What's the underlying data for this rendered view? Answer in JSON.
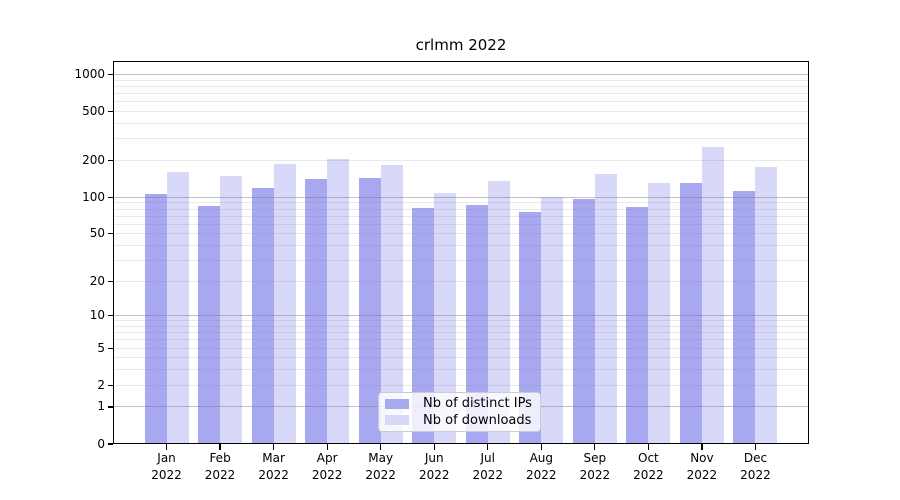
{
  "title": "crlmm 2022",
  "legend": {
    "items": [
      {
        "label": "Nb of distinct IPs"
      },
      {
        "label": "Nb of downloads"
      }
    ]
  },
  "chart_data": {
    "type": "bar",
    "title": "crlmm 2022",
    "categories": [
      "Jan 2022",
      "Feb 2022",
      "Mar 2022",
      "Apr 2022",
      "May 2022",
      "Jun 2022",
      "Jul 2022",
      "Aug 2022",
      "Sep 2022",
      "Oct 2022",
      "Nov 2022",
      "Dec 2022"
    ],
    "x_tick_months": [
      "Jan",
      "Feb",
      "Mar",
      "Apr",
      "May",
      "Jun",
      "Jul",
      "Aug",
      "Sep",
      "Oct",
      "Nov",
      "Dec"
    ],
    "x_tick_year": "2022",
    "series": [
      {
        "name": "Nb of distinct IPs",
        "color": "#a8a8f0",
        "values": [
          106,
          84,
          120,
          141,
          145,
          81,
          87,
          76,
          97,
          83,
          131,
          112
        ]
      },
      {
        "name": "Nb of downloads",
        "color": "#d8d8f8",
        "values": [
          160,
          149,
          186,
          207,
          185,
          108,
          136,
          101,
          154,
          130,
          257,
          178
        ]
      }
    ],
    "xlabel": "",
    "ylabel": "",
    "yscale": "log1p",
    "yticks": [
      0,
      1,
      2,
      5,
      10,
      20,
      50,
      100,
      200,
      500,
      1000
    ],
    "ylim": [
      0,
      1290
    ],
    "grid": "on",
    "grid_position": "above-bars",
    "legend_position": "lower center",
    "colors": {
      "bar_distinct_ips": "#a8a8f0",
      "bar_downloads": "#d8d8f8",
      "major_gridline": "rgba(120,120,120,0.45)",
      "minor_gridline": "rgba(120,120,120,0.16)",
      "spine": "#000000",
      "background": "#ffffff",
      "text": "#000000"
    }
  }
}
